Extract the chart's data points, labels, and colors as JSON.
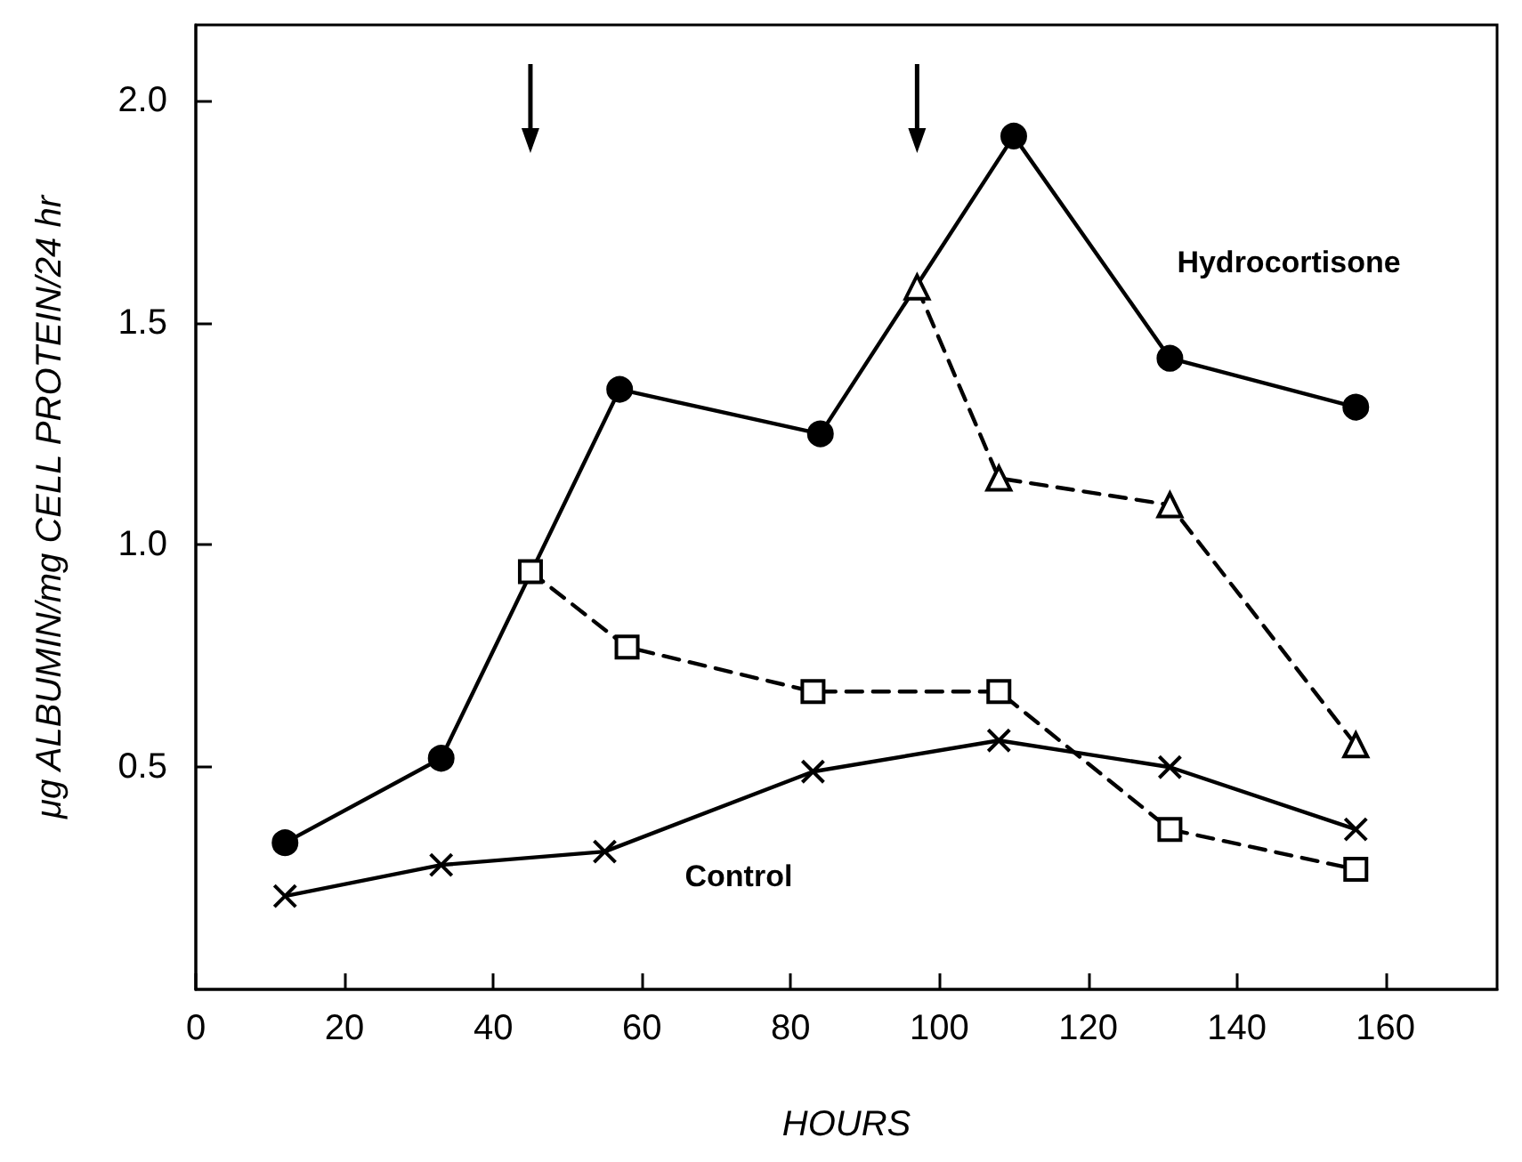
{
  "chart_data": {
    "type": "line",
    "xlabel": "HOURS",
    "ylabel": "μg ALBUMIN/mg CELL PROTEIN/24 hr",
    "xlim": [
      0,
      175
    ],
    "xticks": [
      0,
      20,
      40,
      60,
      80,
      100,
      120,
      140,
      160
    ],
    "ylim": [
      0,
      2.17
    ],
    "yticks": [
      {
        "value": 0.5,
        "label": "0.5"
      },
      {
        "value": 1,
        "label": "1.0"
      },
      {
        "value": 1.5,
        "label": "1.5"
      },
      {
        "value": 2,
        "label": "2.0"
      }
    ],
    "grid": false,
    "legend": false,
    "series": [
      {
        "name": "Hydrocortisone",
        "color": "#000000",
        "marker": "circle",
        "line_style": "solid",
        "x": [
          12,
          33,
          57,
          84,
          110,
          131,
          156
        ],
        "values": [
          0.33,
          0.52,
          1.35,
          1.25,
          1.92,
          1.42,
          1.31
        ]
      },
      {
        "name": "Control",
        "color": "#000000",
        "marker": "cross",
        "line_style": "solid",
        "x": [
          12,
          33,
          55,
          83,
          108,
          131,
          156
        ],
        "values": [
          0.21,
          0.28,
          0.31,
          0.49,
          0.56,
          0.5,
          0.36
        ]
      },
      {
        "color": "#000000",
        "marker": "square",
        "line_style": "dashed",
        "x": [
          45,
          58,
          83,
          108,
          131,
          156
        ],
        "values": [
          0.94,
          0.77,
          0.67,
          0.67,
          0.36,
          0.27
        ]
      },
      {
        "color": "#000000",
        "marker": "triangle",
        "line_style": "dashed",
        "x": [
          97,
          108,
          131,
          156
        ],
        "values": [
          1.58,
          1.15,
          1.09,
          0.55
        ]
      }
    ]
  }
}
